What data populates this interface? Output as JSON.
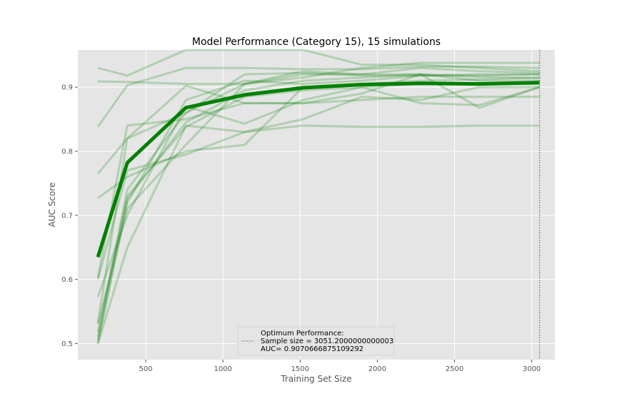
{
  "chart_data": {
    "type": "line",
    "title": "Model Performance (Category 15), 15 simulations",
    "xlabel": "Training Set Size",
    "ylabel": "AUC Score",
    "xlim": [
      60,
      3150
    ],
    "ylim": [
      0.475,
      0.958
    ],
    "xticks": [
      500,
      1000,
      1500,
      2000,
      2500,
      3000
    ],
    "yticks": [
      0.5,
      0.6,
      0.7,
      0.8,
      0.9
    ],
    "grid": true,
    "legend_position": "lower-center",
    "colors": {
      "background": "#e5e5e5",
      "grid": "#ffffff",
      "series": "#008000",
      "vline": "#808080"
    },
    "x": [
      190,
      380,
      760,
      1140,
      1520,
      1900,
      2280,
      2660,
      3051.2
    ],
    "simulations": [
      [
        0.93,
        0.918,
        0.958,
        0.958,
        0.958,
        0.935,
        0.935,
        0.93,
        0.925
      ],
      [
        0.909,
        0.908,
        0.905,
        0.905,
        0.915,
        0.93,
        0.938,
        0.938,
        0.938
      ],
      [
        0.838,
        0.903,
        0.93,
        0.93,
        0.928,
        0.928,
        0.932,
        0.932,
        0.93
      ],
      [
        0.765,
        0.82,
        0.86,
        0.92,
        0.922,
        0.918,
        0.918,
        0.92,
        0.92
      ],
      [
        0.727,
        0.76,
        0.8,
        0.81,
        0.9,
        0.905,
        0.91,
        0.912,
        0.915
      ],
      [
        0.603,
        0.84,
        0.85,
        0.875,
        0.875,
        0.88,
        0.885,
        0.885,
        0.885
      ],
      [
        0.6,
        0.77,
        0.795,
        0.83,
        0.84,
        0.838,
        0.838,
        0.84,
        0.84
      ],
      [
        0.573,
        0.7,
        0.87,
        0.843,
        0.88,
        0.9,
        0.875,
        0.872,
        0.9
      ],
      [
        0.533,
        0.82,
        0.902,
        0.875,
        0.875,
        0.89,
        0.92,
        0.868,
        0.9
      ],
      [
        0.53,
        0.71,
        0.81,
        0.905,
        0.92,
        0.92,
        0.93,
        0.925,
        0.922
      ],
      [
        0.5,
        0.65,
        0.84,
        0.83,
        0.85,
        0.885,
        0.88,
        0.9,
        0.9
      ],
      [
        0.5,
        0.72,
        0.88,
        0.91,
        0.905,
        0.91,
        0.918,
        0.918,
        0.92
      ],
      [
        0.51,
        0.74,
        0.86,
        0.905,
        0.925,
        0.92,
        0.92,
        0.916,
        0.914
      ],
      [
        0.518,
        0.73,
        0.838,
        0.885,
        0.895,
        0.9,
        0.905,
        0.905,
        0.905
      ],
      [
        0.505,
        0.725,
        0.845,
        0.895,
        0.91,
        0.915,
        0.92,
        0.91,
        0.91
      ]
    ],
    "mean": [
      0.635,
      0.782,
      0.868,
      0.888,
      0.899,
      0.904,
      0.906,
      0.905,
      0.907
    ],
    "optimum_x": 3051.2,
    "legend": {
      "line1": "Optimum Performance:",
      "line2": "Sample size = 3051.2000000000003",
      "line3": "AUC= 0.9070666875109292"
    }
  }
}
